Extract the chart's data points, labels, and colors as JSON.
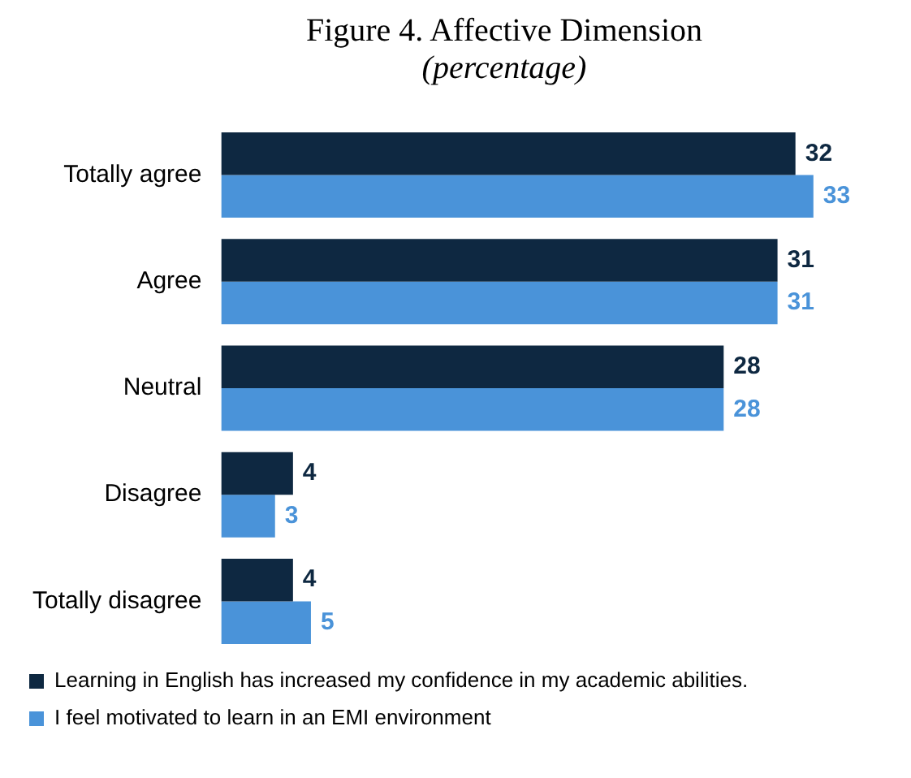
{
  "chart_data": {
    "type": "bar",
    "title": "Figure 4. Affective Dimension",
    "subtitle": "(percentage)",
    "orientation": "horizontal",
    "categories": [
      "Totally agree",
      "Agree",
      "Neutral",
      "Disagree",
      "Totally disagree"
    ],
    "series": [
      {
        "name": "Learning in English has increased my confidence in my academic abilities.",
        "color": "#0e2841",
        "values": [
          32,
          31,
          28,
          4,
          4
        ]
      },
      {
        "name": "I feel motivated to learn in an EMI environment",
        "color": "#4a93d9",
        "values": [
          33,
          31,
          28,
          3,
          5
        ]
      }
    ],
    "data_labels": true,
    "grid": false,
    "legend": "bottom"
  }
}
